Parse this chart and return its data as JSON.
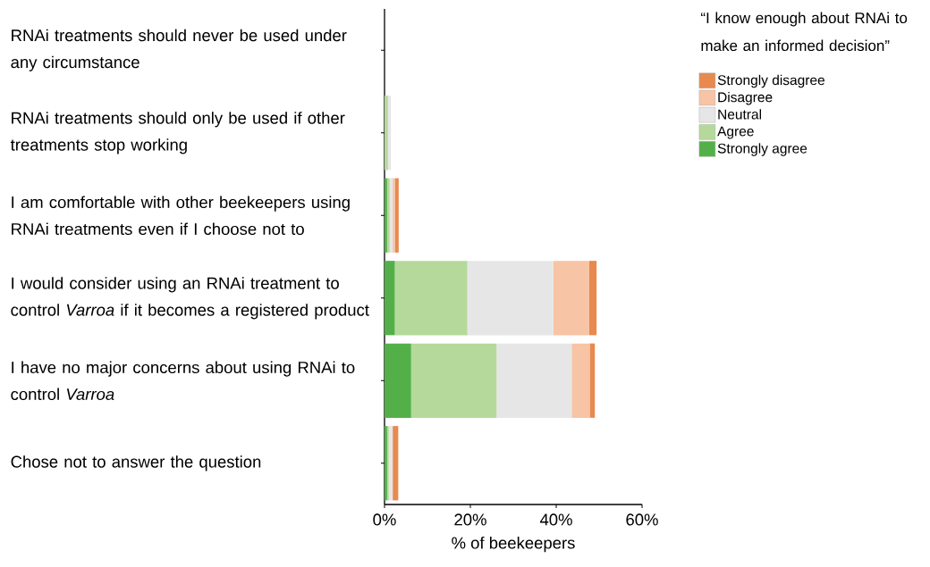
{
  "chart_data": {
    "type": "bar",
    "orientation": "horizontal",
    "stacked": true,
    "categories": [
      "RNAi treatments should never be used under any circumstance",
      "RNAi treatments should only be used if other treatments stop working",
      "I am comfortable with other beekeepers using RNAi treatments even if I choose not to",
      "I would consider using an RNAi treatment to control *Varroa* if it becomes a registered product",
      "I have no major concerns about using RNAi to control *Varroa*",
      "Chose not to answer the question"
    ],
    "series": [
      {
        "name": "Strongly agree",
        "color": "#53b048",
        "values": [
          0,
          0,
          0.6,
          2.4,
          6.2,
          0.6
        ]
      },
      {
        "name": "Agree",
        "color": "#b5d99b",
        "values": [
          0,
          0.8,
          0.6,
          16.9,
          19.9,
          0.4
        ]
      },
      {
        "name": "Neutral",
        "color": "#e6e6e6",
        "values": [
          0,
          0.7,
          0.7,
          20.0,
          17.5,
          0.9
        ]
      },
      {
        "name": "Disagree",
        "color": "#f7c4a5",
        "values": [
          0,
          0,
          0.5,
          8.4,
          4.2,
          0
        ]
      },
      {
        "name": "Strongly disagree",
        "color": "#e8894f",
        "values": [
          0,
          0,
          0.9,
          1.7,
          1.2,
          1.3
        ]
      }
    ],
    "xlim": [
      0,
      60
    ],
    "xticks": [
      {
        "value": 0,
        "label": "0%"
      },
      {
        "value": 20,
        "label": "20%"
      },
      {
        "value": 40,
        "label": "40%"
      },
      {
        "value": 60,
        "label": "60%"
      }
    ],
    "xlabel": "% of beekeepers",
    "legend_title": "“I know enough about RNAi to make an informed decision”",
    "legend": "top right"
  }
}
